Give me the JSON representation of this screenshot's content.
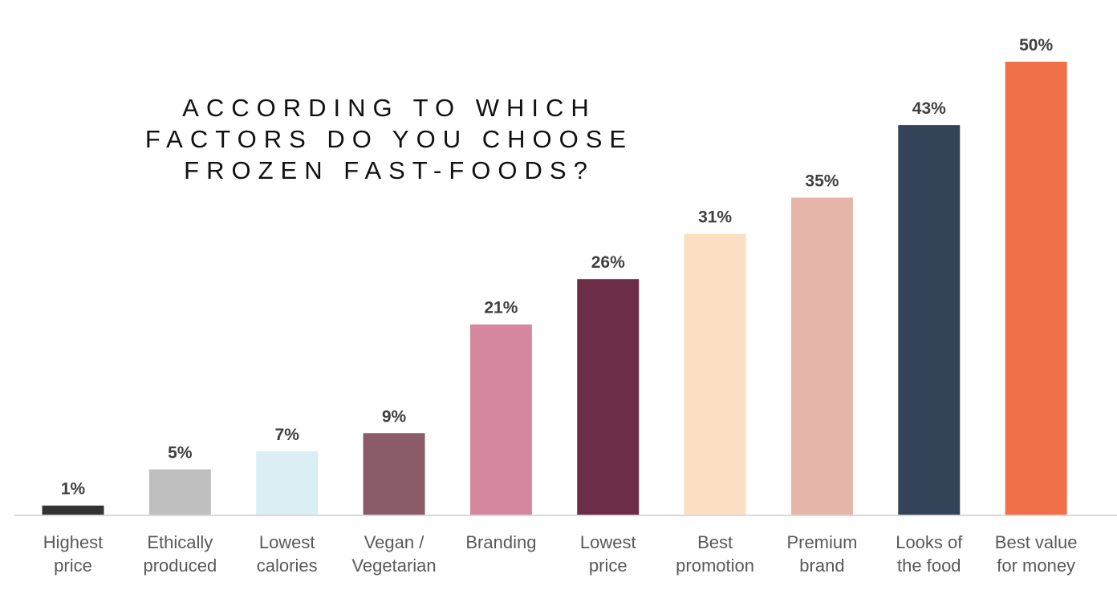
{
  "chart_data": {
    "type": "bar",
    "title_lines": [
      "ACCORDING TO WHICH",
      "FACTORS DO YOU CHOOSE",
      "FROZEN FAST-FOODS?"
    ],
    "categories": [
      [
        "Highest",
        "price"
      ],
      [
        "Ethically",
        "produced"
      ],
      [
        "Lowest",
        "calories"
      ],
      [
        "Vegan /",
        "Vegetarian"
      ],
      [
        "Branding"
      ],
      [
        "Lowest",
        "price"
      ],
      [
        "Best",
        "promotion"
      ],
      [
        "Premium",
        "brand"
      ],
      [
        "Looks of",
        "the food"
      ],
      [
        "Best value",
        "for money"
      ]
    ],
    "values": [
      1,
      5,
      7,
      9,
      21,
      26,
      31,
      35,
      43,
      50
    ],
    "data_labels": [
      "1%",
      "5%",
      "7%",
      "9%",
      "21%",
      "26%",
      "31%",
      "35%",
      "43%",
      "50%"
    ],
    "colors": [
      "#333333",
      "#bfbfbf",
      "#daeef3",
      "#8a5c6a",
      "#d5879f",
      "#6b2d47",
      "#fadfc2",
      "#e6b5aa",
      "#344357",
      "#ef7049"
    ],
    "ylim": [
      0,
      50
    ],
    "unit": "%",
    "grid": false,
    "legend": "none"
  }
}
